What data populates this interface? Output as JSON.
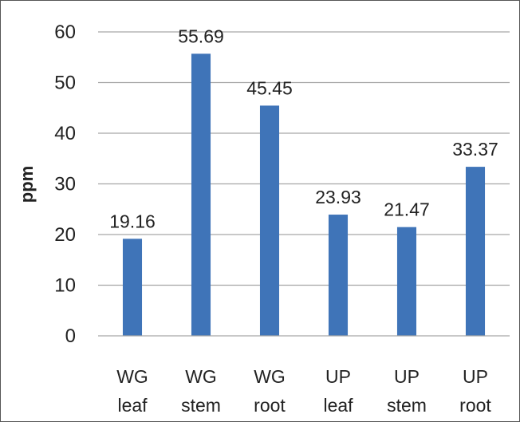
{
  "chart_data": {
    "type": "bar",
    "title": "",
    "xlabel": "",
    "ylabel": "ppm",
    "ylim": [
      0,
      60
    ],
    "yticks": [
      0,
      10,
      20,
      30,
      40,
      50,
      60
    ],
    "grid": true,
    "legend": "none",
    "categories": [
      [
        "WG",
        "leaf"
      ],
      [
        "WG",
        "stem"
      ],
      [
        "WG",
        "root"
      ],
      [
        "UP",
        "leaf"
      ],
      [
        "UP",
        "stem"
      ],
      [
        "UP",
        "root"
      ]
    ],
    "values": [
      19.16,
      55.69,
      45.45,
      23.93,
      21.47,
      33.37
    ],
    "data_labels": [
      "19.16",
      "55.69",
      "45.45",
      "23.93",
      "21.47",
      "33.37"
    ],
    "bar_color": "#3F74B8",
    "grid_color": "#A6A6A6"
  }
}
